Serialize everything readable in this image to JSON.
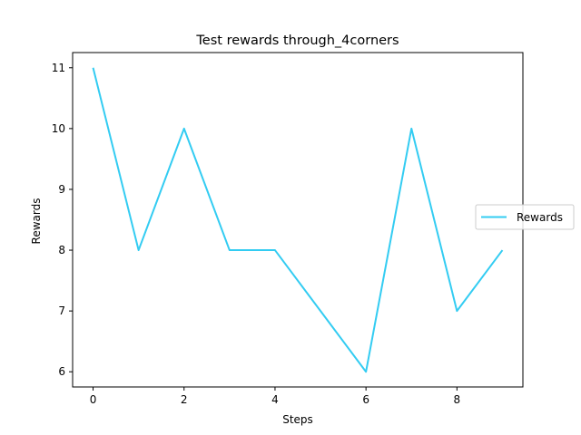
{
  "chart_data": {
    "type": "line",
    "title": "Test rewards through_4corners",
    "xlabel": "Steps",
    "ylabel": "Rewards",
    "x": [
      0,
      1,
      2,
      3,
      4,
      5,
      6,
      7,
      8,
      9
    ],
    "series": [
      {
        "name": "Rewards",
        "values": [
          11,
          8,
          10,
          8,
          8,
          7,
          6,
          10,
          7,
          8
        ],
        "color": "#33ccf2"
      }
    ],
    "xlim": [
      -0.45,
      9.45
    ],
    "ylim": [
      5.75,
      11.25
    ],
    "xticks": [
      "0",
      "2",
      "4",
      "6",
      "8"
    ],
    "yticks": [
      "6",
      "7",
      "8",
      "9",
      "10",
      "11"
    ],
    "grid": false,
    "legend_position": "right"
  }
}
